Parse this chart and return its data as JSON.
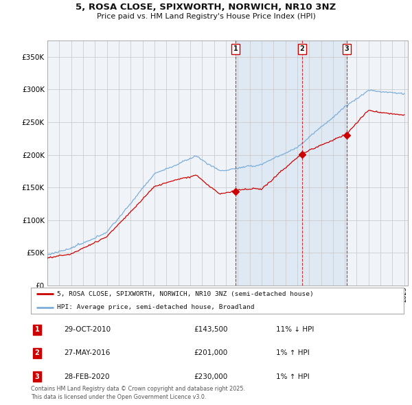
{
  "title": "5, ROSA CLOSE, SPIXWORTH, NORWICH, NR10 3NZ",
  "subtitle": "Price paid vs. HM Land Registry's House Price Index (HPI)",
  "legend_line1": "5, ROSA CLOSE, SPIXWORTH, NORWICH, NR10 3NZ (semi-detached house)",
  "legend_line2": "HPI: Average price, semi-detached house, Broadland",
  "footer": "Contains HM Land Registry data © Crown copyright and database right 2025.\nThis data is licensed under the Open Government Licence v3.0.",
  "transactions": [
    {
      "num": 1,
      "date": "29-OCT-2010",
      "price": 143500,
      "hpi_diff": "11% ↓ HPI",
      "year": 2010.83
    },
    {
      "num": 2,
      "date": "27-MAY-2016",
      "price": 201000,
      "hpi_diff": "1% ↑ HPI",
      "year": 2016.41
    },
    {
      "num": 3,
      "date": "28-FEB-2020",
      "price": 230000,
      "hpi_diff": "1% ↑ HPI",
      "year": 2020.16
    }
  ],
  "sale_color": "#cc0000",
  "hpi_color": "#7aaddb",
  "hpi_fill_color": "#ddeeff",
  "vline_color": "#cc0000",
  "shade_between_1_3": true,
  "ylim": [
    0,
    375000
  ],
  "yticks": [
    0,
    50000,
    100000,
    150000,
    200000,
    250000,
    300000,
    350000
  ],
  "xlim_start": 1995.4,
  "xlim_end": 2025.3,
  "background_color": "#ffffff",
  "plot_bg_color": "#f0f4f8"
}
